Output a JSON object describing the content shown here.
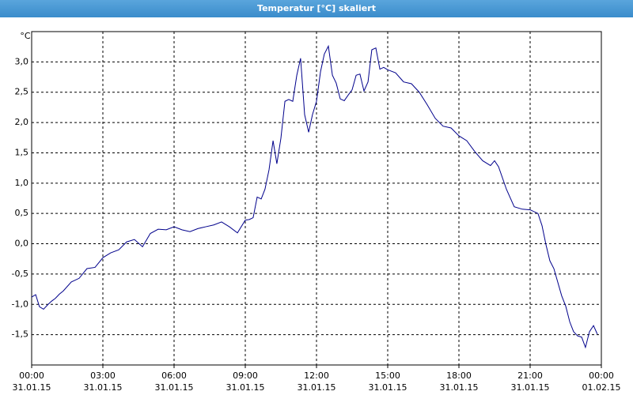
{
  "chart_data": {
    "type": "line",
    "title": "Temperatur [°C] skaliert",
    "ylabel": "°C",
    "color": "#00008b",
    "grid": true,
    "xlim": [
      0,
      24
    ],
    "xticks": [
      {
        "value": 0,
        "label": "00:00 31.01.15"
      },
      {
        "value": 3,
        "label": "03:00 31.01.15"
      },
      {
        "value": 6,
        "label": "06:00 31.01.15"
      },
      {
        "value": 9,
        "label": "09:00 31.01.15"
      },
      {
        "value": 12,
        "label": "12:00 31.01.15"
      },
      {
        "value": 15,
        "label": "15:00 31.01.15"
      },
      {
        "value": 18,
        "label": "18:00 31.01.15"
      },
      {
        "value": 21,
        "label": "21:00 31.01.15"
      },
      {
        "value": 24,
        "label": "00:00 01.02.15"
      }
    ],
    "ylim": [
      -2,
      3.5
    ],
    "yticks": [
      {
        "value": -1.5,
        "label": "-1,5"
      },
      {
        "value": -1,
        "label": "-1,0"
      },
      {
        "value": -0.5,
        "label": "-0,5"
      },
      {
        "value": 0,
        "label": "0,0"
      },
      {
        "value": 0.5,
        "label": "0,5"
      },
      {
        "value": 1,
        "label": "1,0"
      },
      {
        "value": 1.5,
        "label": "1,5"
      },
      {
        "value": 2,
        "label": "2,0"
      },
      {
        "value": 2.5,
        "label": "2,5"
      },
      {
        "value": 3,
        "label": "3,0"
      }
    ],
    "x": [
      0,
      0.17,
      0.33,
      0.5,
      0.67,
      0.83,
      1.0,
      1.17,
      1.33,
      1.67,
      2.0,
      2.33,
      2.67,
      3.0,
      3.33,
      3.67,
      4.0,
      4.33,
      4.67,
      5.0,
      5.33,
      5.67,
      6.0,
      6.33,
      6.67,
      7.0,
      7.33,
      7.67,
      8.0,
      8.33,
      8.67,
      9.0,
      9.17,
      9.33,
      9.5,
      9.67,
      9.83,
      10.0,
      10.17,
      10.33,
      10.5,
      10.67,
      10.83,
      11.0,
      11.17,
      11.33,
      11.5,
      11.67,
      11.83,
      12.0,
      12.17,
      12.33,
      12.5,
      12.67,
      12.83,
      13.0,
      13.17,
      13.33,
      13.5,
      13.67,
      13.83,
      14.0,
      14.17,
      14.33,
      14.5,
      14.67,
      14.83,
      15.0,
      15.33,
      15.67,
      16.0,
      16.33,
      16.67,
      17.0,
      17.33,
      17.67,
      18.0,
      18.33,
      18.67,
      19.0,
      19.33,
      19.5,
      19.67,
      20.0,
      20.33,
      20.67,
      21.0,
      21.33,
      21.5,
      21.67,
      21.83,
      22.0,
      22.33,
      22.5,
      22.67,
      22.83,
      23.0,
      23.17,
      23.33,
      23.5,
      23.67,
      23.83
    ],
    "values": [
      -0.88,
      -0.84,
      -1.04,
      -1.08,
      -1.01,
      -0.95,
      -0.9,
      -0.83,
      -0.78,
      -0.63,
      -0.57,
      -0.41,
      -0.39,
      -0.23,
      -0.15,
      -0.1,
      0.03,
      0.07,
      -0.05,
      0.17,
      0.24,
      0.23,
      0.28,
      0.23,
      0.2,
      0.25,
      0.28,
      0.31,
      0.36,
      0.28,
      0.18,
      0.39,
      0.4,
      0.43,
      0.77,
      0.74,
      0.9,
      1.22,
      1.7,
      1.32,
      1.74,
      2.35,
      2.38,
      2.35,
      2.78,
      3.06,
      2.13,
      1.84,
      2.13,
      2.35,
      2.84,
      3.13,
      3.26,
      2.78,
      2.65,
      2.39,
      2.36,
      2.45,
      2.54,
      2.78,
      2.8,
      2.52,
      2.67,
      3.2,
      3.23,
      2.88,
      2.91,
      2.87,
      2.82,
      2.67,
      2.64,
      2.5,
      2.29,
      2.07,
      1.94,
      1.91,
      1.78,
      1.7,
      1.52,
      1.37,
      1.29,
      1.37,
      1.27,
      0.9,
      0.61,
      0.57,
      0.56,
      0.5,
      0.3,
      -0.02,
      -0.28,
      -0.41,
      -0.86,
      -1.03,
      -1.29,
      -1.45,
      -1.52,
      -1.54,
      -1.71,
      -1.45,
      -1.35,
      -1.49
    ]
  }
}
